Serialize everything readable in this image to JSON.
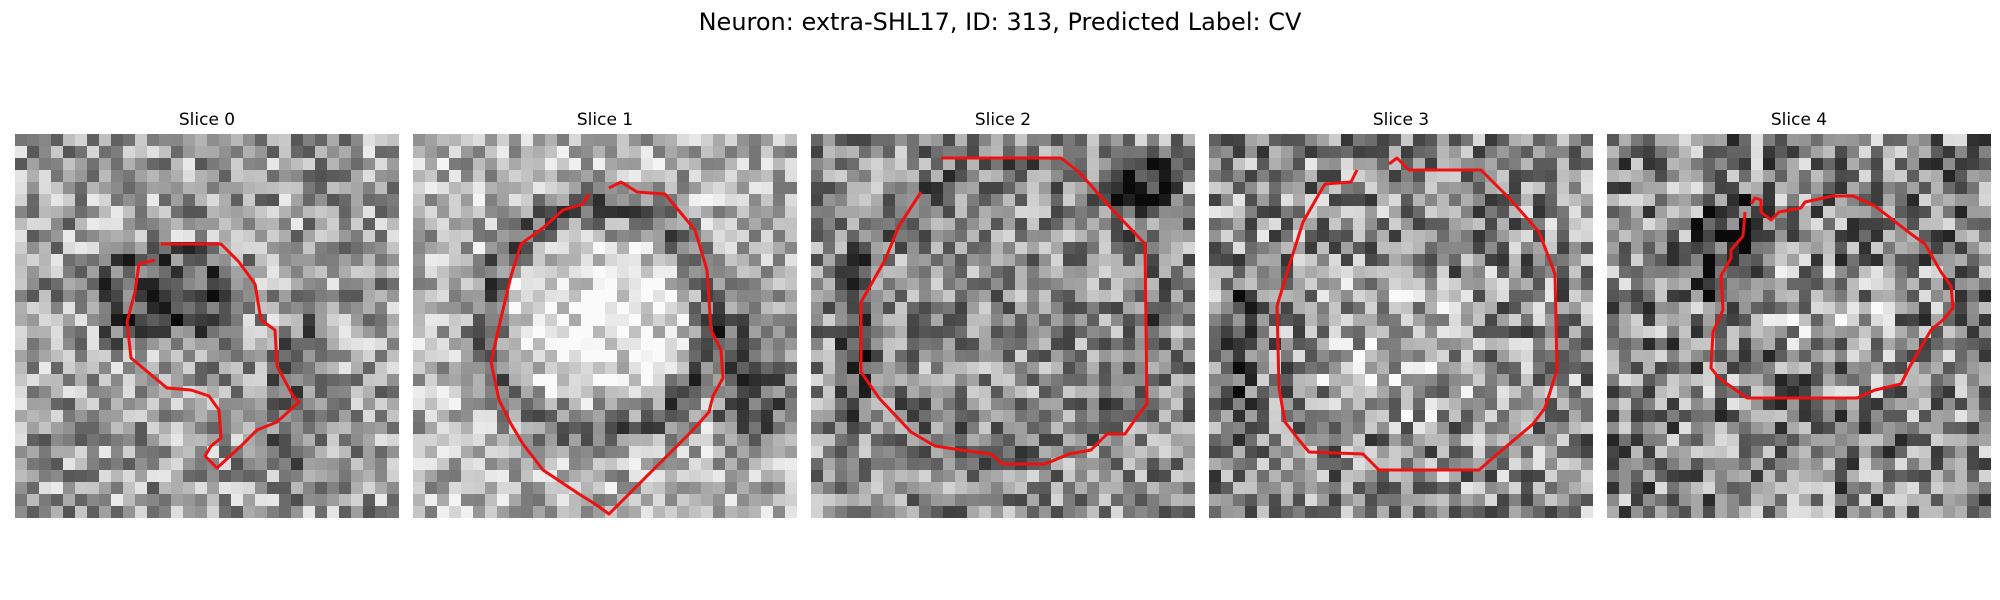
{
  "figure": {
    "title": "Neuron: extra-SHL17, ID: 313, Predicted Label: CV",
    "contour_color": "#ee1111",
    "panels": [
      {
        "title": "Slice 0"
      },
      {
        "title": "Slice 1"
      },
      {
        "title": "Slice 2"
      },
      {
        "title": "Slice 3"
      },
      {
        "title": "Slice 4"
      }
    ]
  }
}
